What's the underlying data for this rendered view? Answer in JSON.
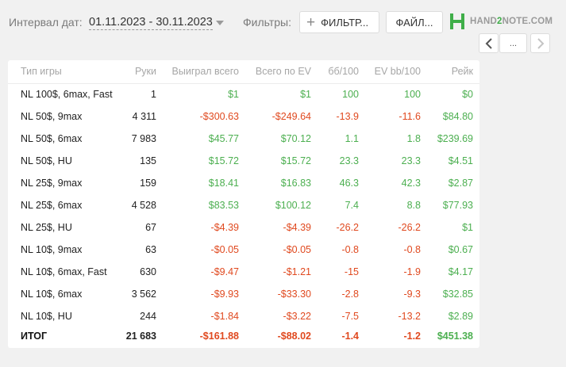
{
  "toolbar": {
    "date_label": "Интервал дат:",
    "date_value": "01.11.2023 - 30.11.2023",
    "filters_label": "Фильтры:",
    "filter_button": "ФИЛЬТР...",
    "file_button": "ФАЙЛ...",
    "logo_part1": "HAND",
    "logo_part2": "2",
    "logo_part3": "NOTE.COM",
    "more_button": "..."
  },
  "colors": {
    "positive": "#4caf50",
    "negative": "#e0491f",
    "brand": "#3fae49"
  },
  "table": {
    "headers": [
      "Тип игры",
      "Руки",
      "Выиграл всего",
      "Всего по EV",
      "бб/100",
      "EV bb/100",
      "Рейк"
    ],
    "rows": [
      [
        "NL 100$, 6max, Fast",
        "1",
        "$1",
        "$1",
        "100",
        "100",
        "$0"
      ],
      [
        "NL 50$, 9max",
        "4 311",
        "-$300.63",
        "-$249.64",
        "-13.9",
        "-11.6",
        "$84.80"
      ],
      [
        "NL 50$, 6max",
        "7 983",
        "$45.77",
        "$70.12",
        "1.1",
        "1.8",
        "$239.69"
      ],
      [
        "NL 50$, HU",
        "135",
        "$15.72",
        "$15.72",
        "23.3",
        "23.3",
        "$4.51"
      ],
      [
        "NL 25$, 9max",
        "159",
        "$18.41",
        "$16.83",
        "46.3",
        "42.3",
        "$2.87"
      ],
      [
        "NL 25$, 6max",
        "4 528",
        "$83.53",
        "$100.12",
        "7.4",
        "8.8",
        "$77.93"
      ],
      [
        "NL 25$, HU",
        "67",
        "-$4.39",
        "-$4.39",
        "-26.2",
        "-26.2",
        "$1"
      ],
      [
        "NL 10$, 9max",
        "63",
        "-$0.05",
        "-$0.05",
        "-0.8",
        "-0.8",
        "$0.67"
      ],
      [
        "NL 10$, 6max, Fast",
        "630",
        "-$9.47",
        "-$1.21",
        "-15",
        "-1.9",
        "$4.17"
      ],
      [
        "NL 10$, 6max",
        "3 562",
        "-$9.93",
        "-$33.30",
        "-2.8",
        "-9.3",
        "$32.85"
      ],
      [
        "NL 10$, HU",
        "244",
        "-$1.84",
        "-$3.22",
        "-7.5",
        "-13.2",
        "$2.89"
      ]
    ],
    "total": [
      "ИТОГ",
      "21 683",
      "-$161.88",
      "-$88.02",
      "-1.4",
      "-1.2",
      "$451.38"
    ]
  }
}
